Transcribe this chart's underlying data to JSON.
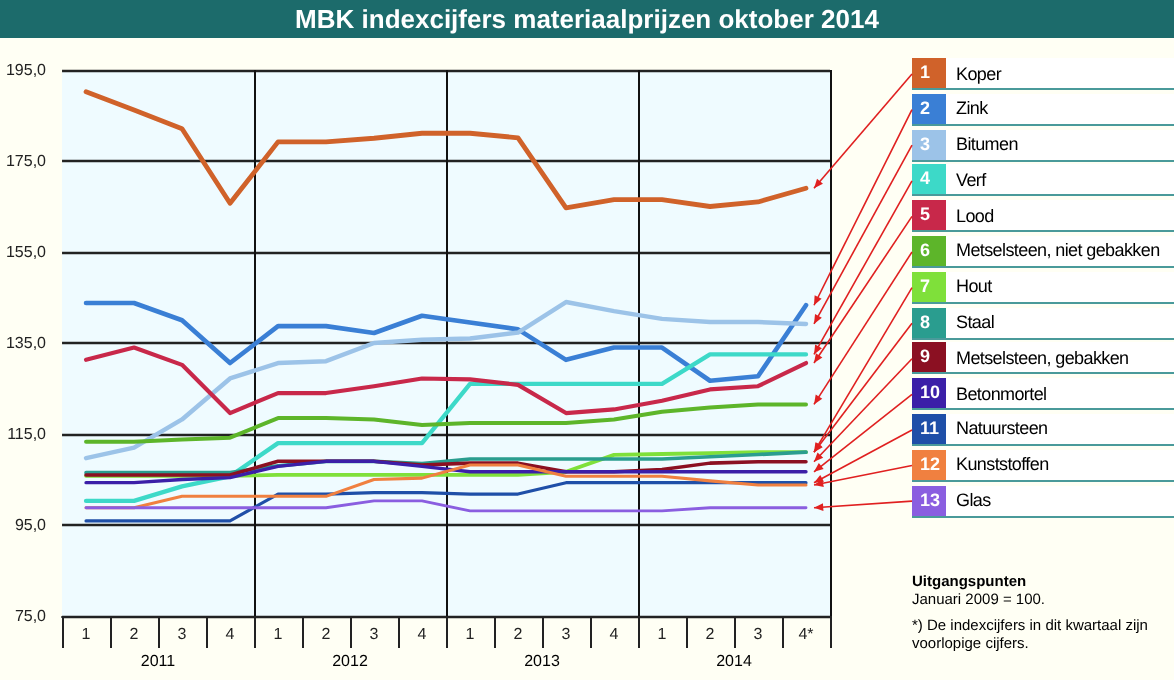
{
  "chart_data": {
    "type": "line",
    "title": "MBK indexcijfers materiaalprijzen oktober 2014",
    "categories": [
      "1",
      "2",
      "3",
      "4",
      "1",
      "2",
      "3",
      "4",
      "1",
      "2",
      "3",
      "4",
      "1",
      "2",
      "3",
      "4*"
    ],
    "series": [
      {
        "name": "1 Koper",
        "color": "#d0622a",
        "values": [
          190.2,
          186.2,
          182.1,
          165.7,
          179.2,
          179.2,
          180,
          181.1,
          181.1,
          180.1,
          164.7,
          166.5,
          166.5,
          165,
          166,
          169
        ]
      },
      {
        "name": "2 Zink",
        "color": "#3a7fd5",
        "values": [
          143.8,
          143.8,
          140,
          130.6,
          138.7,
          138.7,
          137.2,
          141,
          139.5,
          138,
          131.3,
          134,
          134,
          126.7,
          127.7,
          143.3
        ]
      },
      {
        "name": "3 Bitumen",
        "color": "#9cc3e8",
        "values": [
          109.7,
          112,
          118.2,
          127.2,
          130.6,
          131,
          135,
          135.7,
          136,
          137.3,
          144,
          142,
          140.3,
          139.6,
          139.6,
          139.2
        ]
      },
      {
        "name": "4 Verf",
        "color": "#3dd9c8",
        "values": [
          100.3,
          100.3,
          103.5,
          105.7,
          113,
          113,
          113,
          113,
          126,
          126,
          126,
          126,
          126,
          132.5,
          132.5,
          132.5
        ]
      },
      {
        "name": "5 Lood",
        "color": "#c8284a",
        "values": [
          131.3,
          134,
          130.2,
          119.6,
          124,
          124,
          125.5,
          127.2,
          127,
          125.8,
          119.6,
          120.4,
          122.3,
          124.8,
          125.5,
          130.6
        ]
      },
      {
        "name": "6 Metselsteen, niet gebakken",
        "color": "#5db52a",
        "values": [
          113.3,
          113.3,
          113.8,
          114.2,
          118.5,
          118.5,
          118.2,
          117,
          117.4,
          117.4,
          117.4,
          118.2,
          119.9,
          120.8,
          121.5,
          121.5
        ]
      },
      {
        "name": "7 Hout",
        "color": "#7fe03a",
        "values": [
          105.8,
          105.8,
          105.8,
          105.8,
          106,
          106,
          106,
          106,
          106,
          106,
          106.7,
          110.4,
          110.6,
          110.8,
          111,
          111
        ]
      },
      {
        "name": "8 Staal",
        "color": "#2a9d8f",
        "values": [
          106.5,
          106.5,
          106.5,
          106.5,
          108,
          109,
          109,
          108.5,
          109.5,
          109.5,
          109.5,
          109.5,
          109.5,
          110,
          110.5,
          111
        ]
      },
      {
        "name": "9 Metselsteen, gebakken",
        "color": "#8b1022",
        "values": [
          106,
          106,
          106,
          106,
          109,
          109,
          109,
          108.2,
          108.6,
          108.6,
          106.7,
          106.7,
          107.2,
          108.6,
          108.9,
          108.9
        ]
      },
      {
        "name": "10 Betonmortel",
        "color": "#3b1fa8",
        "values": [
          104.3,
          104.3,
          105,
          105.4,
          107.9,
          109,
          109,
          107.9,
          106.7,
          106.7,
          106.7,
          106.7,
          106.7,
          106.7,
          106.7,
          106.7
        ]
      },
      {
        "name": "11 Natuursteen",
        "color": "#1f4fa8",
        "values": [
          95.9,
          95.9,
          95.9,
          95.9,
          101.8,
          101.8,
          102.1,
          102.1,
          101.8,
          101.8,
          104.3,
          104.3,
          104.3,
          104.3,
          104.3,
          104.3
        ]
      },
      {
        "name": "12 Kunststoffen",
        "color": "#f08040",
        "values": [
          98.8,
          98.8,
          101.3,
          101.3,
          101.3,
          101.3,
          105,
          105.3,
          108.2,
          108.2,
          105.7,
          105.7,
          105.7,
          104.7,
          103.8,
          103.8
        ]
      },
      {
        "name": "13 Glas",
        "color": "#8a5ee0",
        "values": [
          98.8,
          98.8,
          98.8,
          98.8,
          98.8,
          98.8,
          100.3,
          100.3,
          98.1,
          98.1,
          98.1,
          98.1,
          98.1,
          98.8,
          98.8,
          98.8
        ]
      }
    ],
    "ylim": [
      75,
      195
    ],
    "yticks": [
      {
        "value": 75,
        "label": "75,0"
      },
      {
        "value": 95,
        "label": "95,0"
      },
      {
        "value": 115,
        "label": "115,0"
      },
      {
        "value": 135,
        "label": "135,0"
      },
      {
        "value": 155,
        "label": "155,0"
      },
      {
        "value": 175,
        "label": "175,0"
      },
      {
        "value": 195,
        "label": "195,0"
      }
    ],
    "grid": true,
    "legend": "right",
    "marker": "none",
    "line_style": "solid",
    "annotations": [
      "2011",
      "2012",
      "2013",
      "2014",
      "Uitgangspunten",
      "Januari 2009 = 100.",
      "*) De indexcijfers in dit kwartaal zijn voorlopige cijfers."
    ]
  }
}
